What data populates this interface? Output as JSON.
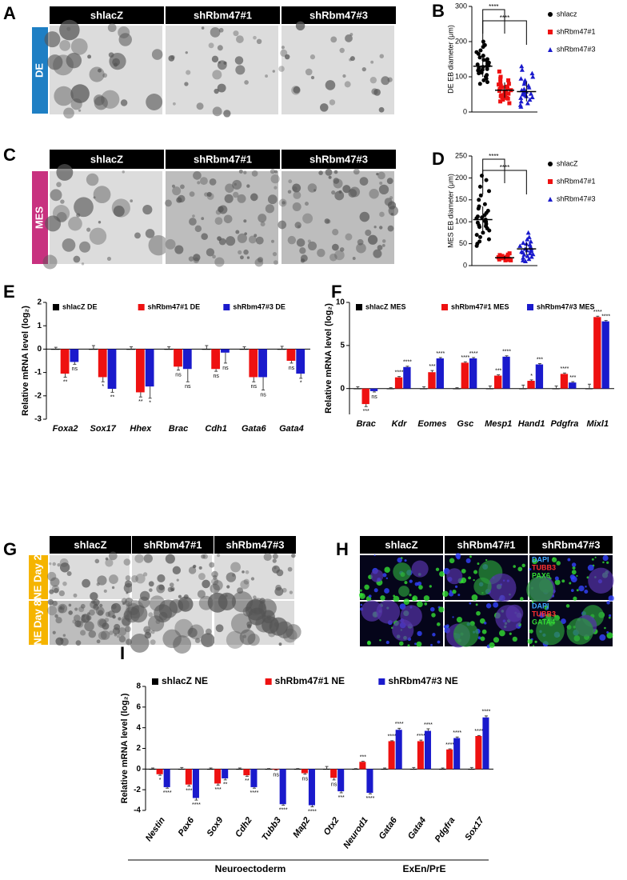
{
  "figure": {
    "A": {
      "letter": "A",
      "side": "DE",
      "headers": [
        "shlacZ",
        "shRbm47#1",
        "shRbm47#3"
      ]
    },
    "C": {
      "letter": "C",
      "side": "MES",
      "headers": [
        "shlacZ",
        "shRbm47#1",
        "shRbm47#3"
      ]
    },
    "G": {
      "letter": "G",
      "sides": [
        "NE Day 2",
        "NE Day 8"
      ],
      "headers": [
        "shlacZ",
        "shRbm47#1",
        "shRbm47#3"
      ]
    },
    "H": {
      "letter": "H",
      "headers": [
        "shlacZ",
        "shRbm47#1",
        "shRbm47#3"
      ],
      "overlays": [
        [
          "DAPI",
          "TUBB3",
          "PAX6"
        ],
        [
          "DAPI",
          "TUBB3",
          "GATA4"
        ]
      ]
    }
  },
  "chart_data": [
    {
      "type": "strip",
      "panel_label": "B",
      "y_label": "DE EB diameter (μm)",
      "ylim": [
        0,
        300
      ],
      "yticks": [
        0,
        100,
        200,
        300
      ],
      "annotations": [
        "****",
        "****"
      ],
      "series": [
        {
          "name": "shlacz",
          "color": "#000000",
          "marker": "circle",
          "mean": 130,
          "sd": 30,
          "values": [
            200,
            190,
            185,
            175,
            170,
            165,
            160,
            155,
            150,
            148,
            145,
            140,
            138,
            135,
            132,
            130,
            128,
            125,
            122,
            120,
            118,
            115,
            112,
            110,
            105,
            100,
            95,
            90,
            85,
            80
          ]
        },
        {
          "name": "shRbm47#1",
          "color": "#ee1111",
          "marker": "square",
          "mean": 62,
          "sd": 22,
          "values": [
            115,
            100,
            95,
            90,
            85,
            80,
            78,
            75,
            72,
            70,
            68,
            65,
            62,
            60,
            58,
            55,
            52,
            50,
            48,
            45,
            42,
            40,
            38,
            35,
            30,
            25
          ]
        },
        {
          "name": "shRbm47#3",
          "color": "#1a1acc",
          "marker": "triangle",
          "mean": 58,
          "sd": 28,
          "values": [
            130,
            120,
            110,
            100,
            95,
            90,
            85,
            80,
            75,
            70,
            65,
            62,
            60,
            58,
            55,
            52,
            50,
            48,
            45,
            42,
            40,
            35,
            30,
            25,
            20,
            15
          ]
        }
      ]
    },
    {
      "type": "strip",
      "panel_label": "D",
      "y_label": "MES EB diameter (μm)",
      "ylim": [
        0,
        250
      ],
      "yticks": [
        0,
        50,
        100,
        150,
        200,
        250
      ],
      "annotations": [
        "****",
        "****"
      ],
      "series": [
        {
          "name": "shlacZ",
          "color": "#000000",
          "marker": "circle",
          "mean": 105,
          "sd": 30,
          "values": [
            205,
            195,
            180,
            170,
            160,
            150,
            140,
            135,
            130,
            125,
            120,
            115,
            112,
            110,
            108,
            105,
            102,
            100,
            98,
            95,
            92,
            90,
            88,
            85,
            80,
            75,
            70,
            65,
            60,
            55,
            50,
            45
          ]
        },
        {
          "name": "shRbm47#1",
          "color": "#ee1111",
          "marker": "square",
          "mean": 18,
          "sd": 4,
          "values": [
            28,
            25,
            24,
            22,
            21,
            20,
            19,
            18,
            18,
            17,
            17,
            16,
            15,
            15,
            14,
            13,
            12,
            12
          ]
        },
        {
          "name": "shRbm47#3",
          "color": "#1a1acc",
          "marker": "triangle",
          "mean": 38,
          "sd": 14,
          "values": [
            75,
            65,
            60,
            55,
            52,
            50,
            48,
            45,
            42,
            40,
            38,
            36,
            35,
            33,
            32,
            30,
            28,
            26,
            25,
            22,
            20,
            18,
            15,
            12,
            10
          ]
        }
      ]
    },
    {
      "type": "bar",
      "panel_label": "E",
      "y_label": "Relative mRNA level (log₂)",
      "ylim": [
        -3,
        2
      ],
      "yticks": [
        -3,
        -2,
        -1,
        0,
        1,
        2
      ],
      "categories": [
        "Foxa2",
        "Sox17",
        "Hhex",
        "Brac",
        "Cdh1",
        "Gata6",
        "Gata4"
      ],
      "series": [
        {
          "name": "shlacZ DE",
          "color": "#000000",
          "values": [
            0,
            0,
            0,
            0,
            0,
            0,
            0
          ],
          "errors": [
            0.08,
            0.15,
            0.1,
            0.1,
            0.15,
            0.1,
            0.12
          ]
        },
        {
          "name": "shRbm47#1 DE",
          "color": "#ee1111",
          "values": [
            -1.05,
            -1.2,
            -1.85,
            -0.75,
            -0.85,
            -1.2,
            -0.5
          ],
          "errors": [
            0.15,
            0.2,
            0.2,
            0.15,
            0.1,
            0.2,
            0.1
          ],
          "annotations": [
            "**",
            "*",
            "**",
            "ns",
            "ns",
            "ns",
            "ns"
          ]
        },
        {
          "name": "shRbm47#3 DE",
          "color": "#1a1acc",
          "values": [
            -0.55,
            -1.7,
            -1.6,
            -0.85,
            -0.15,
            -1.2,
            -1.05
          ],
          "errors": [
            0.1,
            0.15,
            0.5,
            0.55,
            0.45,
            0.55,
            0.2
          ],
          "annotations": [
            "ns",
            "**",
            "*",
            "ns",
            "ns",
            "ns",
            "*"
          ]
        }
      ]
    },
    {
      "type": "bar",
      "panel_label": "F",
      "y_label": "Relative mRNA level (log₂)",
      "ylim": [
        -3,
        10
      ],
      "yticks": [
        0,
        5,
        10
      ],
      "categories": [
        "Brac",
        "Kdr",
        "Eomes",
        "Gsc",
        "Mesp1",
        "Hand1",
        "Pdgfra",
        "Mixl1"
      ],
      "series": [
        {
          "name": "shlacZ MES",
          "color": "#000000",
          "values": [
            0,
            0,
            0,
            0,
            0,
            0,
            0,
            0
          ],
          "errors": [
            0.2,
            0.1,
            0.2,
            0.1,
            0.3,
            0.4,
            0.3,
            0.5
          ]
        },
        {
          "name": "shRbm47#1 MES",
          "color": "#ee1111",
          "values": [
            -1.8,
            1.3,
            1.9,
            3.0,
            1.5,
            0.9,
            1.7,
            8.3
          ],
          "errors": [
            0.3,
            0.1,
            0.2,
            0.1,
            0.1,
            0.1,
            0.1,
            0.1
          ],
          "annotations": [
            "***",
            "****",
            "***",
            "****",
            "***",
            "*",
            "****",
            "****"
          ]
        },
        {
          "name": "shRbm47#3 MES",
          "color": "#1a1acc",
          "values": [
            -0.3,
            2.5,
            3.5,
            3.5,
            3.7,
            2.8,
            0.7,
            7.8
          ],
          "errors": [
            0.1,
            0.1,
            0.1,
            0.1,
            0.1,
            0.1,
            0.1,
            0.1
          ],
          "annotations": [
            "ns",
            "****",
            "****",
            "****",
            "****",
            "***",
            "***",
            "****"
          ]
        }
      ]
    },
    {
      "type": "bar",
      "panel_label": "I",
      "y_label": "Relative mRNA level (log₂)",
      "ylim": [
        -4,
        8
      ],
      "yticks": [
        -4,
        -2,
        0,
        2,
        4,
        6,
        8
      ],
      "categories": [
        "Nestin",
        "Pax6",
        "Sox9",
        "Cdh2",
        "Tubb3",
        "Map2",
        "Otx2",
        "Neurod1",
        "Gata6",
        "Gata4",
        "Pdgfra",
        "Sox17"
      ],
      "groups": [
        "Neuroectoderm",
        "ExEn/PrE"
      ],
      "series": [
        {
          "name": "shlacZ NE",
          "color": "#000000",
          "values": [
            0,
            0,
            0,
            0,
            0,
            0,
            0,
            0,
            0,
            0,
            0,
            0
          ],
          "errors": [
            0.1,
            0.15,
            0.1,
            0.1,
            0.05,
            0.05,
            0.25,
            0.05,
            0.1,
            0.15,
            0.1,
            0.15
          ]
        },
        {
          "name": "shRbm47#1 NE",
          "color": "#ee1111",
          "values": [
            -0.5,
            -1.5,
            -1.4,
            -0.6,
            -0.05,
            -0.4,
            -0.85,
            0.7,
            2.7,
            2.7,
            1.9,
            3.2
          ],
          "errors": [
            0.1,
            0.15,
            0.15,
            0.1,
            0.05,
            0.1,
            0.2,
            0.05,
            0.05,
            0.1,
            0.05,
            0.05
          ],
          "annotations": [
            "*",
            "***",
            "***",
            "**",
            "ns",
            "ns",
            "ns",
            "***",
            "****",
            "****",
            "****",
            "****"
          ]
        },
        {
          "name": "shRbm47#3 NE",
          "color": "#1a1acc",
          "values": [
            -1.75,
            -2.8,
            -0.9,
            -1.75,
            -3.4,
            -3.5,
            -2.15,
            -2.3,
            3.8,
            3.7,
            3.0,
            5.0
          ],
          "errors": [
            0.1,
            0.2,
            0.15,
            0.1,
            0.1,
            0.15,
            0.15,
            0.1,
            0.15,
            0.2,
            0.1,
            0.15
          ],
          "annotations": [
            "****",
            "****",
            "**",
            "****",
            "****",
            "****",
            "***",
            "****",
            "****",
            "****",
            "****",
            "****"
          ]
        }
      ]
    }
  ]
}
